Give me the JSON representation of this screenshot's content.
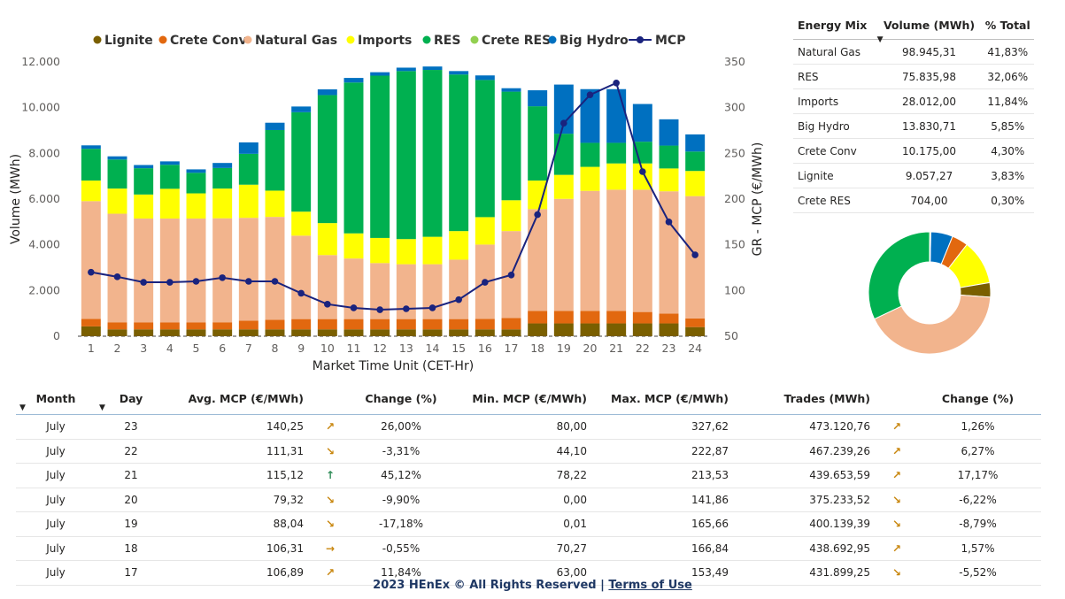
{
  "chart_data": {
    "type": "bar",
    "xlabel": "Market Time Unit (CET-Hr)",
    "ylabel": "Volume (MWh)",
    "y2label": "GR - MCP (€/MWh)",
    "ylim": [
      0,
      12000
    ],
    "y2lim": [
      50,
      350
    ],
    "yticks": [
      "0",
      "2.000",
      "4.000",
      "6.000",
      "8.000",
      "10.000",
      "12.000"
    ],
    "y2ticks": [
      "50",
      "100",
      "150",
      "200",
      "250",
      "300",
      "350"
    ],
    "legend_position": "top",
    "categories": [
      "1",
      "2",
      "3",
      "4",
      "5",
      "6",
      "7",
      "8",
      "9",
      "10",
      "11",
      "12",
      "13",
      "14",
      "15",
      "16",
      "17",
      "18",
      "19",
      "20",
      "21",
      "22",
      "23",
      "24"
    ],
    "series": [
      {
        "name": "Lignite",
        "kind": "bar",
        "color": "#7a5f00",
        "values": [
          430,
          300,
          300,
          300,
          300,
          300,
          300,
          300,
          300,
          300,
          300,
          300,
          300,
          300,
          300,
          300,
          300,
          560,
          560,
          560,
          560,
          560,
          560,
          400
        ]
      },
      {
        "name": "Crete Conv",
        "kind": "bar",
        "color": "#e2680f",
        "values": [
          330,
          310,
          300,
          300,
          300,
          310,
          380,
          420,
          450,
          450,
          450,
          450,
          450,
          450,
          450,
          460,
          500,
          550,
          550,
          550,
          550,
          500,
          430,
          380
        ]
      },
      {
        "name": "Natural Gas",
        "kind": "bar",
        "color": "#f2b48d",
        "values": [
          5150,
          4750,
          4550,
          4550,
          4550,
          4550,
          4500,
          4500,
          3650,
          2800,
          2650,
          2450,
          2400,
          2400,
          2600,
          3250,
          3800,
          4450,
          4900,
          5250,
          5300,
          5350,
          5350,
          5350
        ]
      },
      {
        "name": "Imports",
        "kind": "bar",
        "color": "#ffff00",
        "values": [
          900,
          1100,
          1050,
          1300,
          1100,
          1300,
          1450,
          1150,
          1050,
          1400,
          1100,
          1100,
          1100,
          1200,
          1250,
          1200,
          1350,
          1250,
          1050,
          1050,
          1150,
          1150,
          1000,
          1100
        ]
      },
      {
        "name": "RES",
        "kind": "bar",
        "color": "#00b050",
        "values": [
          1390,
          1270,
          1150,
          1050,
          900,
          900,
          1350,
          2650,
          4350,
          5600,
          6600,
          7100,
          7350,
          7300,
          6850,
          6000,
          4750,
          3250,
          1800,
          1050,
          900,
          950,
          1000,
          850
        ]
      },
      {
        "name": "Crete RES",
        "kind": "bar",
        "color": "#92d050",
        "values": [
          0,
          0,
          0,
          0,
          0,
          0,
          0,
          0,
          0,
          0,
          0,
          0,
          0,
          0,
          0,
          0,
          0,
          0,
          0,
          0,
          0,
          0,
          0,
          0
        ]
      },
      {
        "name": "Big Hydro",
        "kind": "bar",
        "color": "#0070c0",
        "values": [
          150,
          140,
          140,
          150,
          150,
          220,
          500,
          320,
          250,
          250,
          200,
          150,
          150,
          150,
          150,
          200,
          150,
          700,
          2150,
          2350,
          2350,
          1650,
          1150,
          750
        ]
      },
      {
        "name": "MCP",
        "kind": "line",
        "axis": "right",
        "color": "#1a237e",
        "values": [
          120,
          115,
          109,
          109,
          110,
          114,
          110,
          110,
          97,
          85,
          81,
          79,
          80,
          81,
          90,
          109,
          117,
          183,
          283,
          314,
          327,
          230,
          175,
          139
        ]
      }
    ]
  },
  "mix_table": {
    "headers": [
      "Energy Mix",
      "Volume (MWh)",
      "% Total"
    ],
    "sort_arrow": "▼",
    "rows": [
      [
        "Natural Gas",
        "98.945,31",
        "41,83%"
      ],
      [
        "RES",
        "75.835,98",
        "32,06%"
      ],
      [
        "Imports",
        "28.012,00",
        "11,84%"
      ],
      [
        "Big Hydro",
        "13.830,71",
        "5,85%"
      ],
      [
        "Crete Conv",
        "10.175,00",
        "4,30%"
      ],
      [
        "Lignite",
        "9.057,27",
        "3,83%"
      ],
      [
        "Crete RES",
        "704,00",
        "0,30%"
      ]
    ]
  },
  "donut_data": {
    "type": "pie",
    "order": [
      "Big Hydro",
      "Crete Conv",
      "Imports",
      "Lignite",
      "Natural Gas",
      "RES",
      "Crete RES"
    ],
    "values": [
      5.85,
      4.3,
      11.84,
      3.83,
      41.83,
      32.06,
      0.3
    ],
    "colors": [
      "#0070c0",
      "#e2680f",
      "#ffff00",
      "#7a5f00",
      "#f2b48d",
      "#00b050",
      "#92d050"
    ]
  },
  "daily_table": {
    "headers": [
      "Month",
      "Day",
      "Avg. MCP (€/MWh)",
      "",
      "Change (%)",
      "Min. MCP (€/MWh)",
      "Max. MCP (€/MWh)",
      "Trades (MWh)",
      "",
      "Change (%)"
    ],
    "sort_arrow": "▼",
    "rows": [
      {
        "month": "July",
        "day": "23",
        "avg": "140,25",
        "icon1": "↗",
        "ch1": "26,00%",
        "min": "80,00",
        "max": "327,62",
        "trades": "473.120,76",
        "icon2": "↗",
        "ch2": "1,26%"
      },
      {
        "month": "July",
        "day": "22",
        "avg": "111,31",
        "icon1": "↘",
        "ch1": "-3,31%",
        "min": "44,10",
        "max": "222,87",
        "trades": "467.239,26",
        "icon2": "↗",
        "ch2": "6,27%"
      },
      {
        "month": "July",
        "day": "21",
        "avg": "115,12",
        "icon1": "↑",
        "ch1": "45,12%",
        "min": "78,22",
        "max": "213,53",
        "trades": "439.653,59",
        "icon2": "↗",
        "ch2": "17,17%"
      },
      {
        "month": "July",
        "day": "20",
        "avg": "79,32",
        "icon1": "↘",
        "ch1": "-9,90%",
        "min": "0,00",
        "max": "141,86",
        "trades": "375.233,52",
        "icon2": "↘",
        "ch2": "-6,22%"
      },
      {
        "month": "July",
        "day": "19",
        "avg": "88,04",
        "icon1": "↘",
        "ch1": "-17,18%",
        "min": "0,01",
        "max": "165,66",
        "trades": "400.139,39",
        "icon2": "↘",
        "ch2": "-8,79%"
      },
      {
        "month": "July",
        "day": "18",
        "avg": "106,31",
        "icon1": "→",
        "ch1": "-0,55%",
        "min": "70,27",
        "max": "166,84",
        "trades": "438.692,95",
        "icon2": "↗",
        "ch2": "1,57%"
      },
      {
        "month": "July",
        "day": "17",
        "avg": "106,89",
        "icon1": "↗",
        "ch1": "11,84%",
        "min": "63,00",
        "max": "153,49",
        "trades": "431.899,25",
        "icon2": "↘",
        "ch2": "-5,52%"
      }
    ],
    "icon_colors": {
      "up": "#c8860d",
      "up_strong": "#2e8b57",
      "down": "#c8860d",
      "flat": "#c8860d"
    }
  },
  "footer": {
    "text": "2023 HEnEx © All Rights Reserved | ",
    "link": "Terms of Use"
  }
}
